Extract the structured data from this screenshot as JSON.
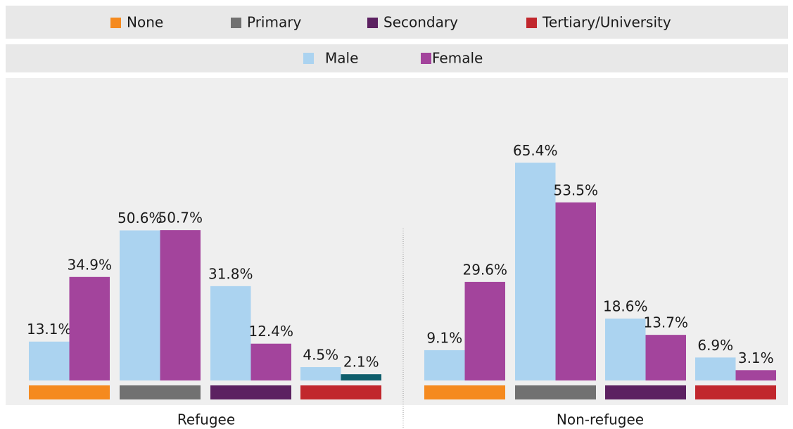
{
  "chart_data": {
    "type": "bar",
    "categories": [
      "None",
      "Primary",
      "Secondary",
      "Tertiary/University"
    ],
    "category_colors": [
      "#f58a1f",
      "#717171",
      "#5c2161",
      "#c1272d"
    ],
    "series": [
      {
        "name": "Male",
        "color": "#abd3f0"
      },
      {
        "name": "Female",
        "color": "#a3449c"
      }
    ],
    "panels": [
      {
        "title": "Refugee",
        "ylim": [
          0,
          101
        ],
        "values": [
          [
            13.1,
            50.6,
            31.8,
            4.5
          ],
          [
            34.9,
            50.7,
            12.4,
            2.1
          ]
        ],
        "value_labels": [
          [
            "13.1%",
            "50.6%",
            "31.8%",
            "4.5%"
          ],
          [
            "34.9%",
            "50.7%",
            "12.4%",
            "2.1%"
          ]
        ],
        "colors": [
          [
            null,
            null,
            null,
            null
          ],
          [
            null,
            null,
            null,
            "#0f5e6c"
          ]
        ]
      },
      {
        "title": "Non-refugee",
        "ylim": [
          0,
          90
        ],
        "values": [
          [
            9.1,
            65.4,
            18.6,
            6.9
          ],
          [
            29.6,
            53.5,
            13.7,
            3.1
          ]
        ],
        "value_labels": [
          [
            "9.1%",
            "65.4%",
            "18.6%",
            "6.9%"
          ],
          [
            "29.6%",
            "53.5%",
            "13.7%",
            "3.1%"
          ]
        ],
        "colors": [
          [
            null,
            null,
            null,
            null
          ],
          [
            null,
            null,
            null,
            null
          ]
        ]
      }
    ]
  }
}
